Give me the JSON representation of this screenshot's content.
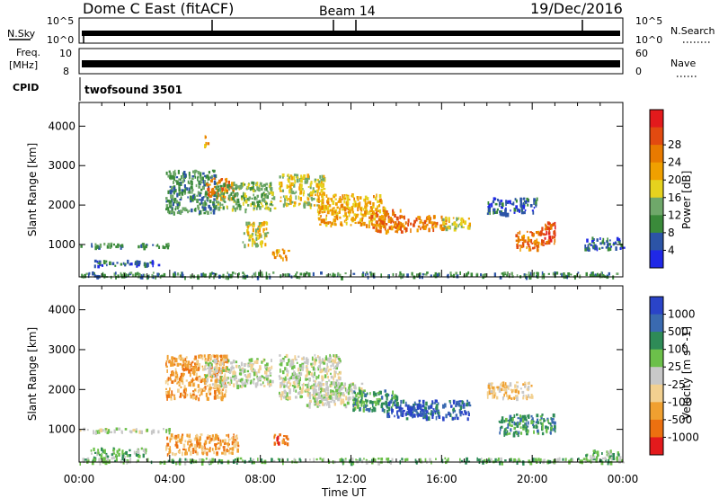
{
  "header": {
    "title": "Dome C East (fitACF)",
    "beam": "Beam 14",
    "date": "19/Dec/2016"
  },
  "status_panels": {
    "nsky_label": "N.Sky",
    "nsearch_label": "N.Search",
    "nsky_ticks": [
      "10^5",
      "10^0"
    ],
    "nsearch_ticks": [
      "10^5",
      "10^0"
    ],
    "freq_label_1": "Freq.",
    "freq_label_2": "[MHz]",
    "freq_ticks": [
      "10",
      "8"
    ],
    "nave_label": "Nave",
    "nave_ticks": [
      "60",
      "0"
    ],
    "cpid_label": "CPID",
    "cpid_value": "twofsound 3501"
  },
  "colorbars": {
    "power": {
      "label": "Power [dB]",
      "ticks": [
        "4",
        "8",
        "12",
        "16",
        "20",
        "24",
        "28"
      ],
      "colors": [
        "#1f28e6",
        "#2c54a6",
        "#3a8a3a",
        "#6fa86a",
        "#e6d21e",
        "#f0a000",
        "#e87a00",
        "#e24a10",
        "#e31a1c"
      ]
    },
    "velocity": {
      "label": "Velocity [m s^-1]",
      "ticks": [
        "1000",
        "500",
        "100",
        "25",
        "-25",
        "-100",
        "-500",
        "-1000"
      ],
      "colors": [
        "#2a44c8",
        "#3a6ab0",
        "#2e8b57",
        "#6cc04a",
        "#c8c8c8",
        "#f2d090",
        "#f0a030",
        "#ec7010",
        "#e31a1c"
      ]
    }
  },
  "chart_data": [
    {
      "type": "heatmap",
      "name": "power",
      "ylabel": "Slant Range [km]",
      "xlabel": "",
      "ylim": [
        180,
        4600
      ],
      "xlim": [
        0,
        24
      ],
      "y_ticks": [
        1000,
        2000,
        3000,
        4000
      ],
      "x_ticks": [
        "00:00",
        "04:00",
        "08:00",
        "12:00",
        "16:00",
        "20:00",
        "00:00"
      ],
      "clusters": [
        {
          "t0": 0.0,
          "t1": 4.0,
          "r0": 950,
          "r1": 1050,
          "level": 2
        },
        {
          "t0": 0.5,
          "t1": 3.5,
          "r0": 480,
          "r1": 620,
          "level": 1
        },
        {
          "t0": 0.0,
          "t1": 24.0,
          "r0": 200,
          "r1": 320,
          "level": 2
        },
        {
          "t0": 3.8,
          "t1": 6.0,
          "r0": 1800,
          "r1": 2900,
          "level": 2
        },
        {
          "t0": 5.6,
          "t1": 6.8,
          "r0": 2200,
          "r1": 2700,
          "level": 6
        },
        {
          "t0": 6.0,
          "t1": 8.6,
          "r0": 1900,
          "r1": 2600,
          "level": 3
        },
        {
          "t0": 8.5,
          "t1": 9.2,
          "r0": 650,
          "r1": 900,
          "level": 5
        },
        {
          "t0": 7.2,
          "t1": 8.3,
          "r0": 1000,
          "r1": 1600,
          "level": 4
        },
        {
          "t0": 8.8,
          "t1": 10.8,
          "r0": 2000,
          "r1": 2800,
          "level": 4
        },
        {
          "t0": 10.5,
          "t1": 13.5,
          "r0": 1500,
          "r1": 2300,
          "level": 5
        },
        {
          "t0": 12.8,
          "t1": 14.2,
          "r0": 1350,
          "r1": 1900,
          "level": 6
        },
        {
          "t0": 14.0,
          "t1": 16.2,
          "r0": 1400,
          "r1": 1750,
          "level": 6
        },
        {
          "t0": 16.0,
          "t1": 17.2,
          "r0": 1400,
          "r1": 1700,
          "level": 4
        },
        {
          "t0": 18.0,
          "t1": 20.2,
          "r0": 1800,
          "r1": 2200,
          "level": 1
        },
        {
          "t0": 19.2,
          "t1": 20.4,
          "r0": 900,
          "r1": 1350,
          "level": 6
        },
        {
          "t0": 20.3,
          "t1": 21.0,
          "r0": 1000,
          "r1": 1600,
          "level": 7
        },
        {
          "t0": 22.3,
          "t1": 24.0,
          "r0": 900,
          "r1": 1200,
          "level": 1
        },
        {
          "t0": 5.5,
          "t1": 5.7,
          "r0": 3500,
          "r1": 3800,
          "level": 5
        }
      ]
    },
    {
      "type": "heatmap",
      "name": "velocity",
      "ylabel": "Slant Range [km]",
      "xlabel": "Time UT",
      "ylim": [
        180,
        4600
      ],
      "xlim": [
        0,
        24
      ],
      "y_ticks": [
        1000,
        2000,
        3000,
        4000
      ],
      "x_ticks": [
        "00:00",
        "04:00",
        "08:00",
        "12:00",
        "16:00",
        "20:00",
        "00:00"
      ],
      "clusters": [
        {
          "t0": 0.0,
          "t1": 4.0,
          "r0": 950,
          "r1": 1050,
          "level": 4
        },
        {
          "t0": 0.5,
          "t1": 3.0,
          "r0": 300,
          "r1": 550,
          "level": 3
        },
        {
          "t0": 0.0,
          "t1": 24.0,
          "r0": 190,
          "r1": 300,
          "level": 3
        },
        {
          "t0": 3.8,
          "t1": 7.0,
          "r0": 400,
          "r1": 900,
          "level": 6
        },
        {
          "t0": 3.8,
          "t1": 6.5,
          "r0": 1800,
          "r1": 2900,
          "level": 6
        },
        {
          "t0": 5.5,
          "t1": 8.5,
          "r0": 2100,
          "r1": 2800,
          "level": 4
        },
        {
          "t0": 8.5,
          "t1": 9.2,
          "r0": 650,
          "r1": 900,
          "level": 7
        },
        {
          "t0": 8.8,
          "t1": 11.5,
          "r0": 1800,
          "r1": 2900,
          "level": 4
        },
        {
          "t0": 10.0,
          "t1": 12.5,
          "r0": 1600,
          "r1": 2200,
          "level": 4
        },
        {
          "t0": 12.0,
          "t1": 14.0,
          "r0": 1500,
          "r1": 2000,
          "level": 2
        },
        {
          "t0": 13.5,
          "t1": 17.2,
          "r0": 1300,
          "r1": 1750,
          "level": 1
        },
        {
          "t0": 14.0,
          "t1": 15.5,
          "r0": 1350,
          "r1": 1600,
          "level": 0
        },
        {
          "t0": 18.5,
          "t1": 21.0,
          "r0": 900,
          "r1": 1400,
          "level": 2
        },
        {
          "t0": 18.0,
          "t1": 20.0,
          "r0": 1800,
          "r1": 2200,
          "level": 5
        },
        {
          "t0": 22.3,
          "t1": 24.0,
          "r0": 300,
          "r1": 500,
          "level": 3
        }
      ]
    }
  ]
}
